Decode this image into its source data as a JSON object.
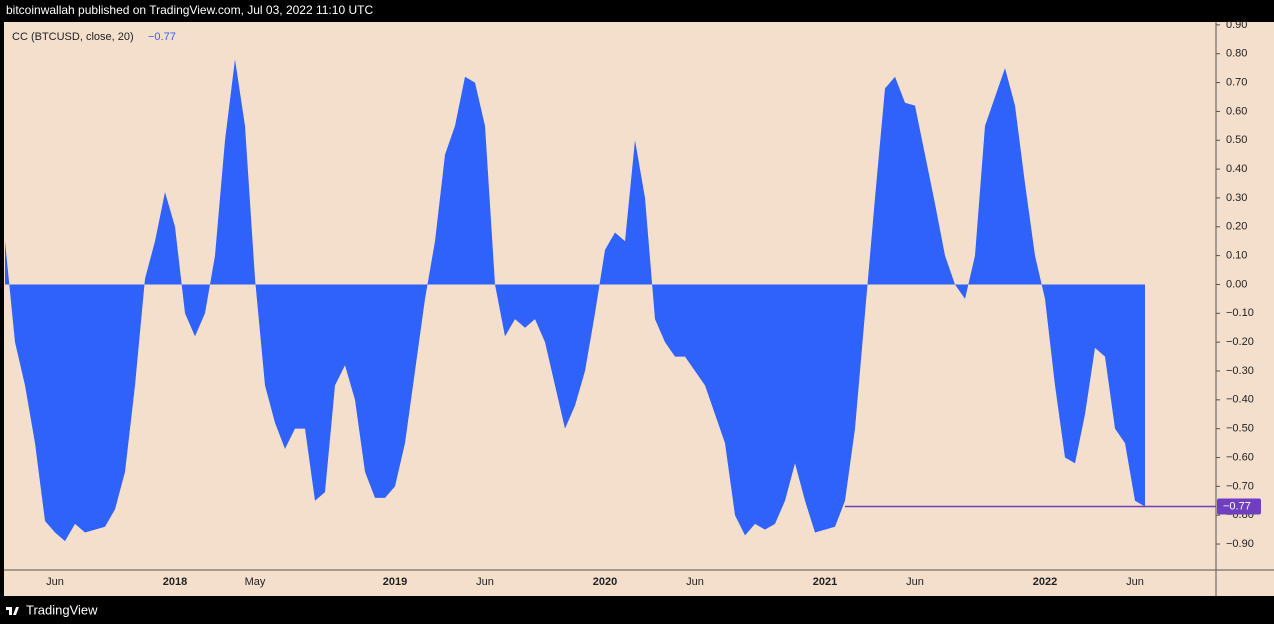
{
  "header": "bitcoinwallah published on TradingView.com, Jul 03, 2022 11:10 UTC",
  "footer": "TradingView",
  "chart_data": {
    "type": "area",
    "categories": [
      null,
      null,
      null,
      null,
      null,
      "Jun",
      null,
      null,
      null,
      null,
      null,
      null,
      null,
      null,
      null,
      null,
      null,
      "2018",
      null,
      null,
      null,
      null,
      null,
      null,
      null,
      "May",
      null,
      null,
      null,
      null,
      null,
      null,
      null,
      null,
      null,
      null,
      null,
      null,
      null,
      "2019",
      null,
      null,
      null,
      null,
      null,
      null,
      null,
      null,
      "Jun",
      null,
      null,
      null,
      null,
      null,
      null,
      null,
      null,
      null,
      null,
      null,
      "2020",
      null,
      null,
      null,
      null,
      null,
      null,
      null,
      null,
      "Jun",
      null,
      null,
      null,
      null,
      null,
      null,
      null,
      null,
      null,
      null,
      null,
      null,
      "2021",
      null,
      null,
      null,
      null,
      null,
      null,
      null,
      null,
      "Jun",
      null,
      null,
      null,
      null,
      null,
      null,
      null,
      null,
      null,
      null,
      null,
      null,
      "2022",
      null,
      null,
      null,
      null,
      null,
      null,
      null,
      null,
      "Jun",
      null
    ],
    "series": [
      {
        "name": "CC (BTCUSD, close, 20)",
        "color": "#2f62fb",
        "values": [
          0.15,
          -0.2,
          -0.35,
          -0.55,
          -0.82,
          -0.86,
          -0.89,
          -0.83,
          -0.86,
          -0.85,
          -0.84,
          -0.78,
          -0.65,
          -0.35,
          0.02,
          0.15,
          0.32,
          0.2,
          -0.1,
          -0.18,
          -0.1,
          0.1,
          0.5,
          0.78,
          0.55,
          0.02,
          -0.35,
          -0.48,
          -0.57,
          -0.5,
          -0.5,
          -0.75,
          -0.72,
          -0.35,
          -0.28,
          -0.4,
          -0.65,
          -0.74,
          -0.74,
          -0.7,
          -0.55,
          -0.3,
          -0.05,
          0.15,
          0.45,
          0.55,
          0.72,
          0.7,
          0.55,
          0.0,
          -0.18,
          -0.12,
          -0.15,
          -0.12,
          -0.2,
          -0.35,
          -0.5,
          -0.42,
          -0.3,
          -0.1,
          0.12,
          0.18,
          0.15,
          0.5,
          0.3,
          -0.12,
          -0.2,
          -0.25,
          -0.25,
          -0.3,
          -0.35,
          -0.45,
          -0.55,
          -0.8,
          -0.87,
          -0.83,
          -0.85,
          -0.83,
          -0.75,
          -0.62,
          -0.75,
          -0.86,
          -0.85,
          -0.84,
          -0.75,
          -0.5,
          -0.1,
          0.3,
          0.68,
          0.72,
          0.63,
          0.62,
          0.45,
          0.28,
          0.1,
          0.0,
          -0.05,
          0.1,
          0.55,
          0.65,
          0.75,
          0.62,
          0.35,
          0.1,
          -0.05,
          -0.35,
          -0.6,
          -0.62,
          -0.45,
          -0.22,
          -0.25,
          -0.5,
          -0.55,
          -0.75,
          -0.77
        ],
        "value_labels": [
          null,
          null,
          null,
          null,
          null,
          null,
          null,
          null,
          null,
          null,
          null,
          null,
          null,
          null,
          null,
          null,
          null,
          null,
          null,
          null,
          null,
          null,
          null,
          null,
          null,
          null,
          null,
          null,
          null,
          null,
          null,
          null,
          null,
          null,
          null,
          null,
          null,
          null,
          null,
          null,
          null,
          null,
          null,
          null,
          null,
          null,
          null,
          null,
          null,
          null,
          null,
          null,
          null,
          null,
          null,
          null,
          null,
          null,
          null,
          null,
          null,
          null,
          null,
          null,
          null,
          null,
          null,
          null,
          null,
          null,
          null,
          null,
          null,
          null,
          null,
          null,
          null,
          null,
          null,
          null,
          null,
          null,
          null,
          null,
          null,
          null,
          null,
          null,
          null,
          null,
          null,
          null,
          null,
          null,
          null,
          null,
          null,
          null,
          null,
          null,
          null,
          null,
          null,
          null,
          null,
          null,
          null,
          null,
          null,
          null,
          null,
          null,
          null,
          null,
          "−0.77"
        ],
        "price_line_color": "#6f3fc0"
      }
    ],
    "ylim": [
      -0.99,
      0.91
    ],
    "yticks": [
      {
        "value": 0.9,
        "label": "0.90"
      },
      {
        "value": 0.8,
        "label": "0.80"
      },
      {
        "value": 0.7,
        "label": "0.70"
      },
      {
        "value": 0.6,
        "label": "0.60"
      },
      {
        "value": 0.5,
        "label": "0.50"
      },
      {
        "value": 0.4,
        "label": "0.40"
      },
      {
        "value": 0.3,
        "label": "0.30"
      },
      {
        "value": 0.2,
        "label": "0.20"
      },
      {
        "value": 0.1,
        "label": "0.10"
      },
      {
        "value": 0,
        "label": "0.00"
      },
      {
        "value": -0.1,
        "label": "−0.10"
      },
      {
        "value": -0.2,
        "label": "−0.20"
      },
      {
        "value": -0.3,
        "label": "−0.30"
      },
      {
        "value": -0.4,
        "label": "−0.40"
      },
      {
        "value": -0.5,
        "label": "−0.50"
      },
      {
        "value": -0.6,
        "label": "−0.60"
      },
      {
        "value": -0.7,
        "label": "−0.70"
      },
      {
        "value": -0.8,
        "label": "−0.80"
      },
      {
        "value": -0.9,
        "label": "−0.90"
      }
    ],
    "grid": false
  }
}
